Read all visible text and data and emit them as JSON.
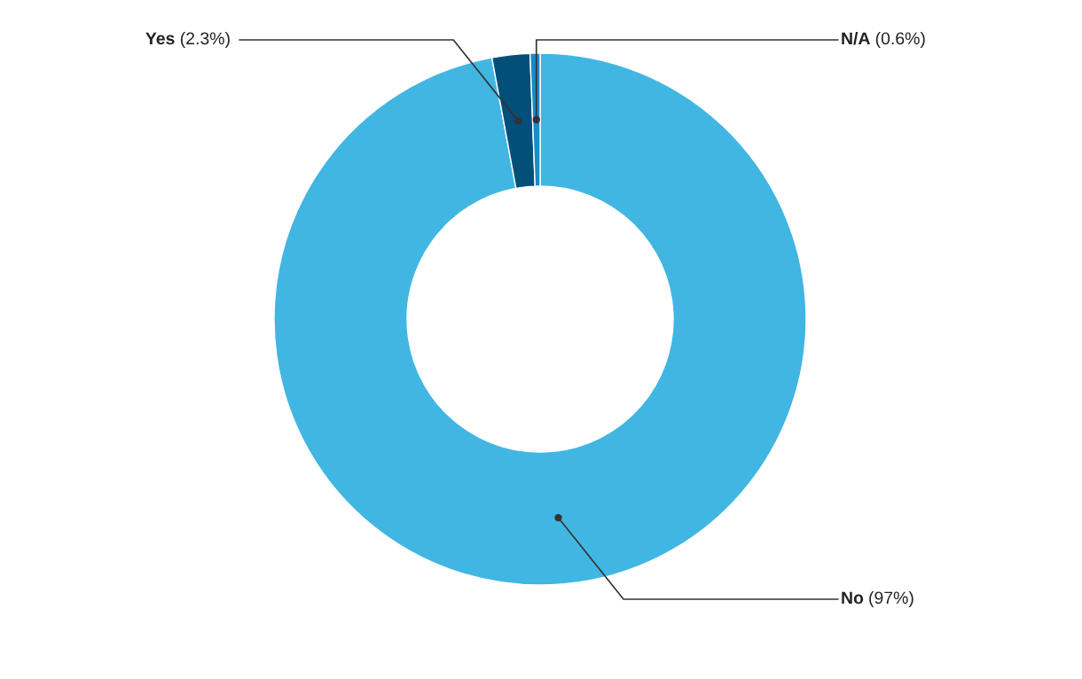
{
  "chart_data": {
    "type": "donut",
    "categories": [
      "No",
      "Yes",
      "N/A"
    ],
    "values": [
      97,
      2.3,
      0.6
    ],
    "colors": [
      "#41b6e2",
      "#02507a",
      "#1a8cc2"
    ],
    "value_labels": [
      "(97%)",
      "(2.3%)",
      "(0.6%)"
    ],
    "legend": false
  }
}
